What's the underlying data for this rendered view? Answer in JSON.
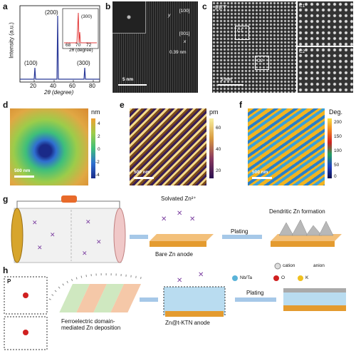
{
  "panels": {
    "a": {
      "label": "a",
      "xlabel": "2θ (degree)",
      "ylabel": "Intensity (a.u.)",
      "ticks_x": [
        "20",
        "40",
        "60",
        "80"
      ],
      "peaks": [
        "(100)",
        "(200)",
        "(300)"
      ],
      "inset_label": "(300)",
      "inset_ticks_x": [
        "68",
        "70",
        "72"
      ],
      "inset_xlabel": "2θ (degree)"
    },
    "b": {
      "label": "b",
      "dir1": "[100]",
      "dir2": "[001]",
      "axis_y": "y",
      "axis_x": "x",
      "spacing": "0.39 nm",
      "scale": "5 nm"
    },
    "c": {
      "label": "c",
      "fft": "FFT",
      "c1": "C1",
      "c2": "C2",
      "inset1": "C1",
      "inset2": "C2",
      "scale": "5 nm"
    },
    "d": {
      "label": "d",
      "unit": "nm",
      "ticks": [
        "4",
        "2",
        "0",
        "-2",
        "-4"
      ],
      "scale": "500 nm"
    },
    "e": {
      "label": "e",
      "unit": "pm",
      "ticks": [
        "60",
        "40",
        "20"
      ],
      "scale": "500 nm"
    },
    "f": {
      "label": "f",
      "unit": "Deg.",
      "ticks": [
        "200",
        "150",
        "100",
        "50",
        "0"
      ],
      "scale": "500 nm"
    },
    "g": {
      "label": "g",
      "solvated": "Solvated Zn²⁺",
      "bare": "Bare Zn anode",
      "plating": "Plating",
      "dendritic": "Dendritic  Zn formation"
    },
    "h": {
      "label": "h",
      "p_label": "P",
      "ferro": "Ferroelectric domain-\nmediated Zn deposition",
      "anode": "Zn@t-KTN anode",
      "plating": "Plating",
      "legend": {
        "cation": "cation",
        "anion": "anion",
        "nbta": "Nb/Ta",
        "o": "O",
        "k": "K"
      }
    }
  },
  "colors": {
    "xrd_line": "#2b3a99",
    "xrd_inset": "#e23a3a",
    "zn": "#e49b2f",
    "purple": "#7b3fa0",
    "arrow": "#a6c8e8"
  }
}
